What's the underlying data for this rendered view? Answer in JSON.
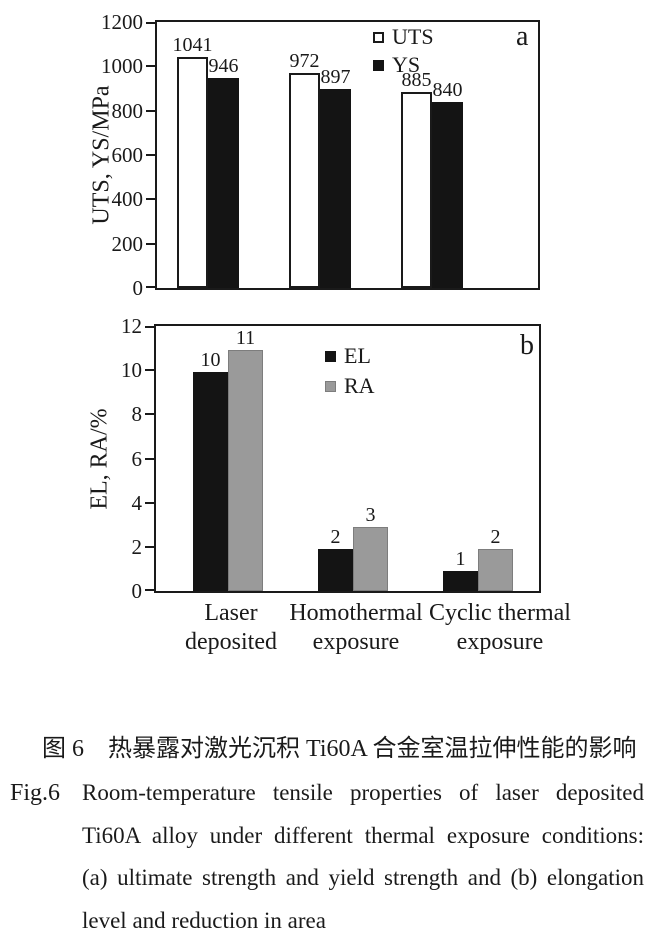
{
  "page": {
    "background": "#ffffff",
    "ink_color": "#1a1a1a",
    "bar_black": "#141414",
    "bar_gray": "#9a9a9a",
    "bar_white": "#ffffff"
  },
  "figure": {
    "caption_zh": "图 6　热暴露对激光沉积 Ti60A 合金室温拉伸性能的影响",
    "caption_en_prefix": "Fig.6",
    "caption_en_lines": [
      "Room-temperature tensile properties of laser deposited",
      "Ti60A alloy under different thermal exposure conditions:",
      "(a) ultimate strength and yield strength and (b) elongation",
      "level and reduction in area"
    ]
  },
  "chart_data": [
    {
      "id": "a",
      "type": "bar",
      "panel_label": "a",
      "ylabel": "UTS, YS/MPa",
      "ylim": [
        0,
        1200
      ],
      "yticks": [
        0,
        200,
        400,
        600,
        800,
        1000,
        1200
      ],
      "grid": false,
      "legend_position": "inside-top-center",
      "categories": [
        "Laser deposited",
        "Homothermal exposure",
        "Cyclic thermal exposure"
      ],
      "series": [
        {
          "name": "UTS",
          "fill": "#ffffff",
          "edge": "#1a1a1a",
          "values": [
            1041,
            972,
            885
          ],
          "labels": [
            "1041",
            "972",
            "885"
          ]
        },
        {
          "name": "YS",
          "fill": "#141414",
          "edge": "#141414",
          "values": [
            946,
            897,
            840
          ],
          "labels": [
            "946",
            "897",
            "840"
          ]
        }
      ]
    },
    {
      "id": "b",
      "type": "bar",
      "panel_label": "b",
      "ylabel": "EL, RA/%",
      "ylim": [
        0,
        12
      ],
      "yticks": [
        0,
        2,
        4,
        6,
        8,
        10,
        12
      ],
      "grid": false,
      "legend_position": "inside-top-center",
      "categories": [
        "Laser deposited",
        "Homothermal exposure",
        "Cyclic thermal exposure"
      ],
      "x_tick_lines": [
        [
          "Laser",
          "deposited"
        ],
        [
          "Homothermal",
          "exposure"
        ],
        [
          "Cyclic thermal",
          "exposure"
        ]
      ],
      "series": [
        {
          "name": "EL",
          "fill": "#141414",
          "edge": "#141414",
          "values": [
            10,
            2,
            1
          ],
          "bar_heights": [
            9.9,
            1.9,
            0.9
          ],
          "labels": [
            "10",
            "2",
            "1"
          ]
        },
        {
          "name": "RA",
          "fill": "#9a9a9a",
          "edge": "#7d7d7d",
          "values": [
            11,
            3,
            2
          ],
          "bar_heights": [
            10.9,
            2.9,
            1.9
          ],
          "labels": [
            "11",
            "3",
            "2"
          ]
        }
      ]
    }
  ]
}
